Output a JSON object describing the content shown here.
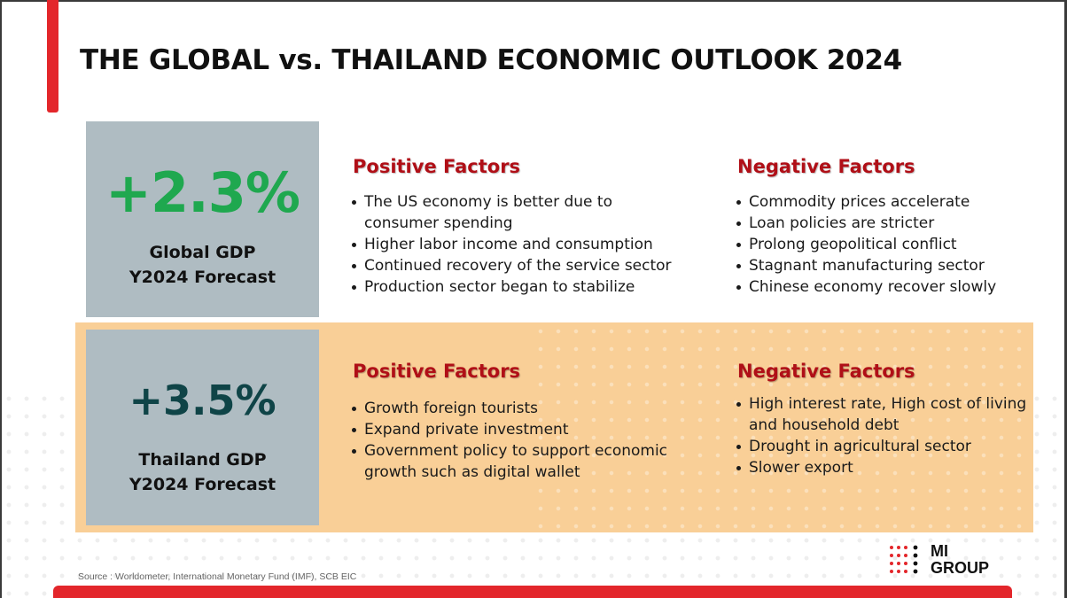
{
  "title": "THE GLOBAL vs. THAILAND ECONOMIC OUTLOOK 2024",
  "global": {
    "value": "+2.3%",
    "label_line1": "Global GDP",
    "label_line2": "Y2024 Forecast",
    "value_color": "#1fa84f",
    "positive": {
      "heading": "Positive Factors",
      "items": [
        "The US economy is better due to",
        "consumer spending",
        "Higher labor income and consumption",
        "Continued recovery of the service sector",
        "Production sector began to stabilize"
      ]
    },
    "negative": {
      "heading": "Negative Factors",
      "items": [
        "Commodity prices accelerate",
        "Loan policies are stricter",
        "Prolong geopolitical conflict",
        "Stagnant manufacturing sector",
        "Chinese economy recover slowly"
      ]
    }
  },
  "thailand": {
    "value": "+3.5%",
    "label_line1": "Thailand GDP",
    "label_line2": "Y2024 Forecast",
    "value_color": "#0f4447",
    "positive": {
      "heading": "Positive Factors",
      "items": [
        "Growth foreign tourists",
        "Expand private investment",
        "Government policy to support economic",
        "growth such as digital wallet"
      ]
    },
    "negative": {
      "heading": "Negative Factors",
      "items": [
        "High interest rate, High cost of living",
        "and household debt",
        "Drought in agricultural sector",
        "Slower export"
      ]
    }
  },
  "source": "Source : Worldometer, International Monetary Fund (IMF), SCB EIC",
  "logo": {
    "line1": "MI",
    "line2": "GROUP"
  },
  "colors": {
    "accent": "#e3262b",
    "heading": "#b00f17",
    "gdp_box": "#afbcc2",
    "thai_band": "#f9cf97"
  }
}
